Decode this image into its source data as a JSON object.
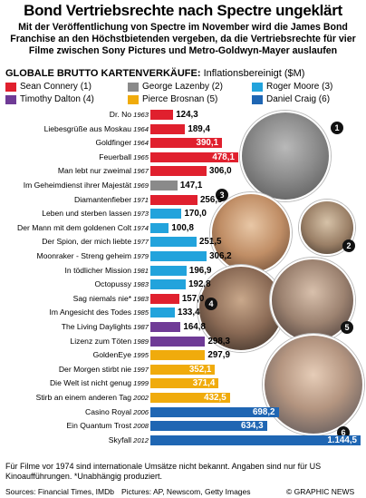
{
  "title": "Bond Vertriebsrechte nach Spectre ungeklärt",
  "subtitle": "Mit der Veröffentlichung von Spectre im November wird die James Bond Franchise an den Höchstbietenden vergeben, da die Vertriebsrechte für vier Filme zwischen Sony Pictures und Metro-Goldwyn-Mayer auslaufen",
  "section_title": "GLOBALE BRUTTO KARTENVERKÄUFE:",
  "section_unit": "Inflationsbereinigt ($M)",
  "colors": {
    "connery": "#e0202e",
    "lazenby": "#8a8a8a",
    "moore": "#22a3dc",
    "dalton": "#6f3b96",
    "brosnan": "#f0ab0c",
    "craig": "#1f66b3"
  },
  "legend": [
    {
      "label": "Sean Connery (1)",
      "actor": "connery"
    },
    {
      "label": "George Lazenby (2)",
      "actor": "lazenby"
    },
    {
      "label": "Roger Moore (3)",
      "actor": "moore"
    },
    {
      "label": "Timothy Dalton (4)",
      "actor": "dalton"
    },
    {
      "label": "Pierce Brosnan (5)",
      "actor": "brosnan"
    },
    {
      "label": "Daniel Craig (6)",
      "actor": "craig"
    }
  ],
  "chart_data": {
    "type": "bar",
    "orientation": "horizontal",
    "title": "GLOBALE BRUTTO KARTENVERKÄUFE: Inflationsbereinigt ($M)",
    "categories": [
      "Dr. No",
      "Liebesgrüße aus Moskau",
      "Goldfinger",
      "Feuerball",
      "Man lebt nur zweimal",
      "Im Geheimdienst ihrer Majestät",
      "Diamantenfieber",
      "Leben und sterben lassen",
      "Der Mann mit dem goldenen Colt",
      "Der Spion, der mich liebte",
      "Moonraker - Streng geheim",
      "In tödlicher Mission",
      "Octopussy",
      "Sag niemals nie*",
      "Im Angesicht des Todes",
      "The Living Daylights",
      "Lizenz zum Töten",
      "GoldenEye",
      "Der Morgen stirbt nie",
      "Die Welt ist nicht genug",
      "Stirb an einem anderen Tag",
      "Casino Royal",
      "Ein Quantum Trost",
      "Skyfall"
    ],
    "years": [
      "1963",
      "1964",
      "1964",
      "1965",
      "1967",
      "1969",
      "1971",
      "1973",
      "1974",
      "1977",
      "1979",
      "1981",
      "1983",
      "1983",
      "1985",
      "1987",
      "1989",
      "1995",
      "1997",
      "1999",
      "2002",
      "2006",
      "2008",
      "2012"
    ],
    "values": [
      124.3,
      189.4,
      390.1,
      478.1,
      306.0,
      147.1,
      256.5,
      170.0,
      100.8,
      251.5,
      306.2,
      196.9,
      192.8,
      157.0,
      133.4,
      164.8,
      298.3,
      297.9,
      352.1,
      371.4,
      432.5,
      698.2,
      634.3,
      1144.5
    ],
    "value_labels": [
      "124,3",
      "189,4",
      "390,1",
      "478,1",
      "306,0",
      "147,1",
      "256,5",
      "170,0",
      "100,8",
      "251,5",
      "306,2",
      "196,9",
      "192,8",
      "157,0",
      "133,4",
      "164,8",
      "298,3",
      "297,9",
      "352,1",
      "371,4",
      "432,5",
      "698,2",
      "634,3",
      "1.144,5"
    ],
    "actors": [
      "connery",
      "connery",
      "connery",
      "connery",
      "connery",
      "lazenby",
      "connery",
      "moore",
      "moore",
      "moore",
      "moore",
      "moore",
      "moore",
      "connery",
      "moore",
      "dalton",
      "dalton",
      "brosnan",
      "brosnan",
      "brosnan",
      "brosnan",
      "craig",
      "craig",
      "craig"
    ],
    "xlim": [
      0,
      1144.5
    ]
  },
  "photo_numbers": [
    "1",
    "2",
    "3",
    "4",
    "5",
    "6"
  ],
  "footnote": "Für Filme vor 1974 sind internationale Umsätze nicht bekannt. Angaben sind nur für US Kinoaufführungen. *Unabhängig produziert.",
  "sources": "Sources: Financial Times, IMDb",
  "pictures": "Pictures: AP, Newscom, Getty Images",
  "credit": "© GRAPHIC NEWS"
}
